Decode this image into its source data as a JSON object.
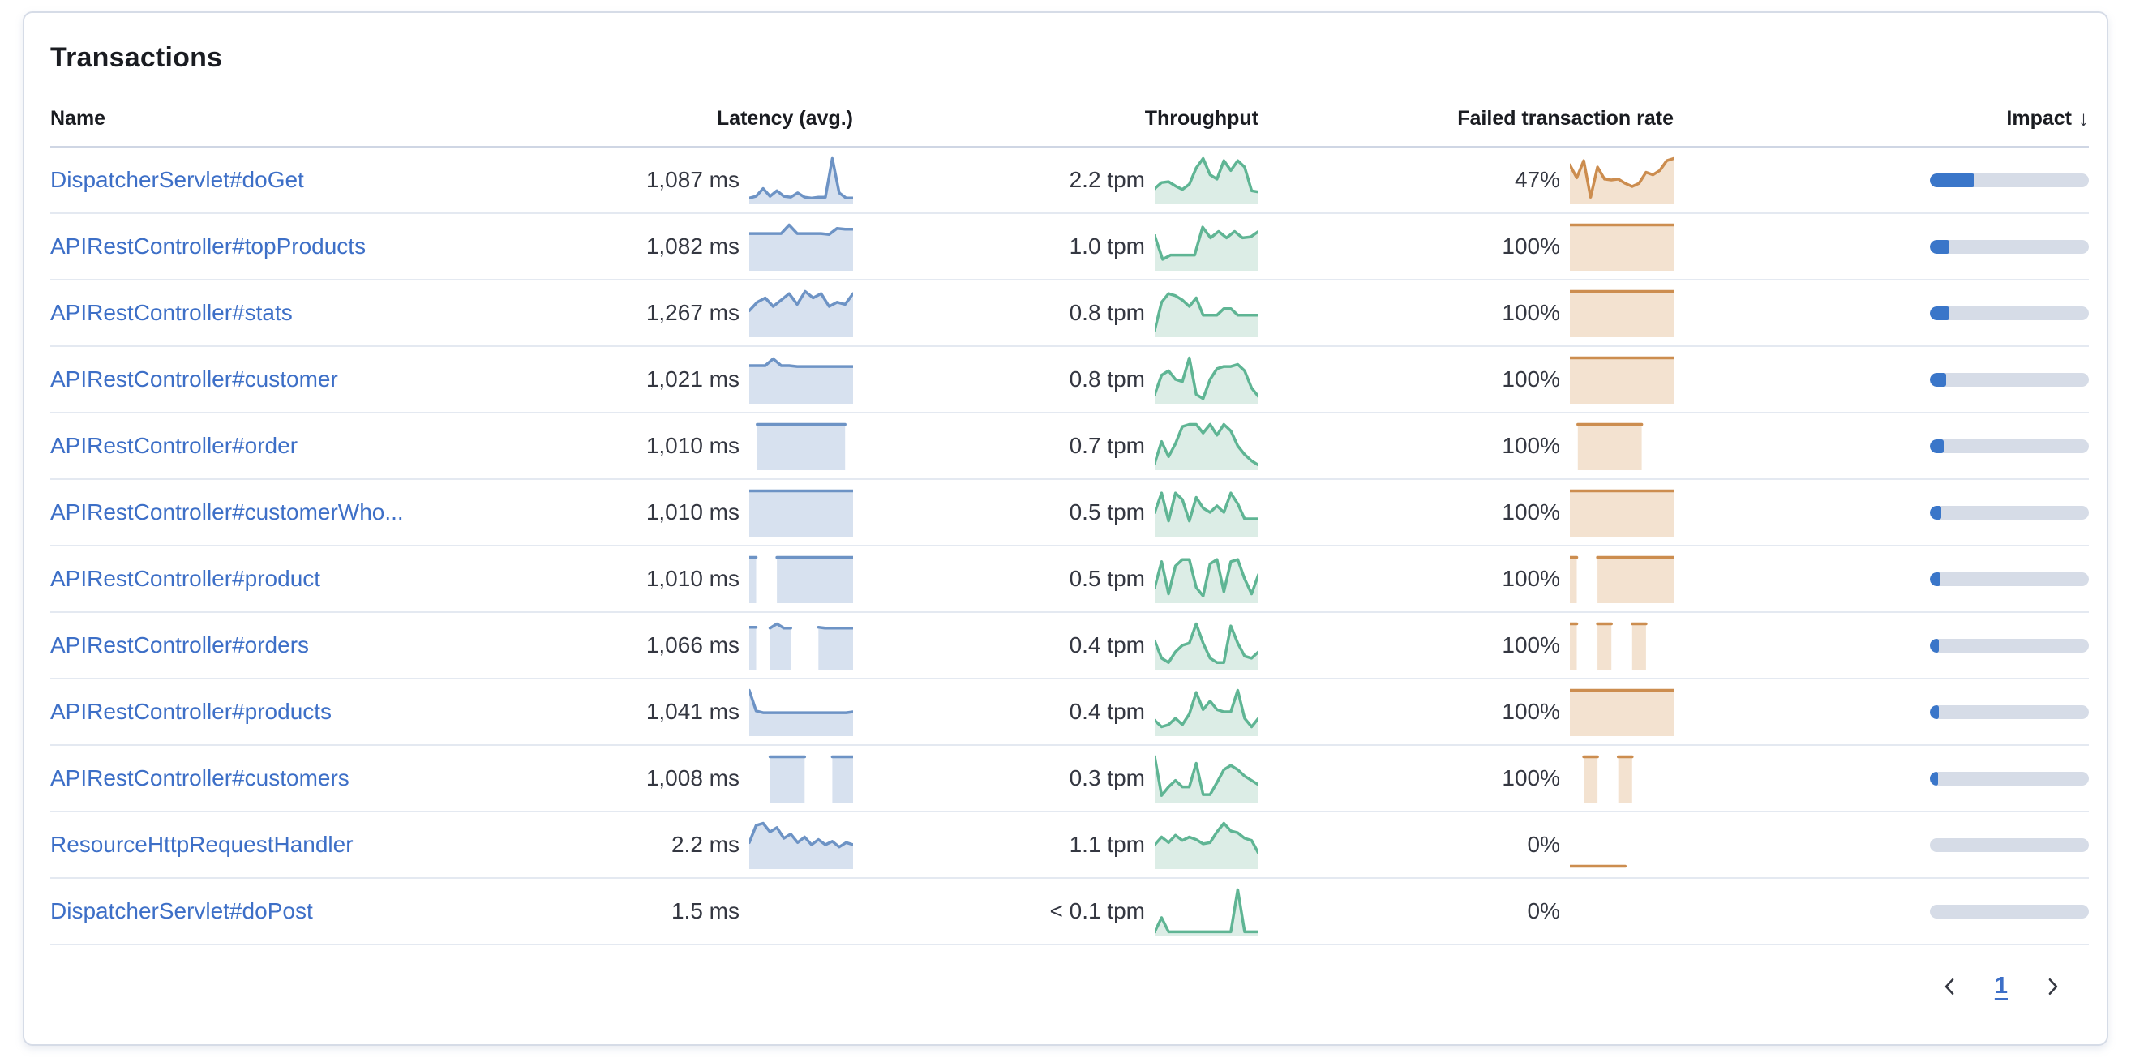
{
  "card": {
    "title": "Transactions"
  },
  "table": {
    "columns": {
      "name": "Name",
      "latency": "Latency (avg.)",
      "throughput": "Throughput",
      "failed": "Failed transaction rate",
      "impact": "Impact"
    },
    "sort_icon": "↓",
    "rows": [
      {
        "name": "DispatcherServlet#doGet",
        "latency": "1,087 ms",
        "throughput": "2.2 tpm",
        "failed": "47%",
        "impact_pct": 28,
        "latency_spark": [
          0.08,
          0.12,
          0.3,
          0.12,
          0.25,
          0.12,
          0.1,
          0.2,
          0.1,
          0.08,
          0.1,
          0.1,
          1.0,
          0.2,
          0.08,
          0.08
        ],
        "throughput_spark": [
          0.3,
          0.44,
          0.46,
          0.36,
          0.28,
          0.4,
          0.78,
          1.0,
          0.62,
          0.52,
          0.95,
          0.72,
          0.95,
          0.8,
          0.25,
          0.22
        ],
        "failed_spark": [
          0.85,
          0.55,
          0.95,
          0.1,
          0.8,
          0.52,
          0.5,
          0.52,
          0.42,
          0.35,
          0.42,
          0.68,
          0.62,
          0.72,
          0.95,
          1.0
        ]
      },
      {
        "name": "APIRestController#topProducts",
        "latency": "1,082 ms",
        "throughput": "1.0 tpm",
        "failed": "100%",
        "impact_pct": 12,
        "latency_spark": [
          0.8,
          0.8,
          0.8,
          0.8,
          0.8,
          1.0,
          0.8,
          0.8,
          0.8,
          0.8,
          0.78,
          0.92,
          0.9,
          0.9
        ],
        "throughput_spark": [
          0.75,
          0.2,
          0.3,
          0.3,
          0.3,
          0.3,
          0.95,
          0.7,
          0.85,
          0.7,
          0.85,
          0.7,
          0.72,
          0.85
        ],
        "failed_spark": [
          1,
          1,
          1,
          1,
          1,
          1,
          1,
          1,
          1,
          1,
          1,
          1,
          1,
          1
        ]
      },
      {
        "name": "APIRestController#stats",
        "latency": "1,267 ms",
        "throughput": "0.8 tpm",
        "failed": "100%",
        "impact_pct": 12,
        "latency_spark": [
          0.55,
          0.75,
          0.85,
          0.65,
          0.8,
          0.95,
          0.7,
          1.0,
          0.85,
          0.95,
          0.65,
          0.75,
          0.7,
          0.95
        ],
        "throughput_spark": [
          0.1,
          0.75,
          0.95,
          0.9,
          0.8,
          0.65,
          0.85,
          0.45,
          0.45,
          0.45,
          0.6,
          0.6,
          0.45,
          0.45,
          0.45,
          0.45
        ],
        "failed_spark": [
          1,
          1,
          1,
          1,
          1,
          1,
          1,
          1,
          1,
          1,
          1,
          1,
          1,
          1
        ]
      },
      {
        "name": "APIRestController#customer",
        "latency": "1,021 ms",
        "throughput": "0.8 tpm",
        "failed": "100%",
        "impact_pct": 10,
        "latency_spark": [
          0.82,
          0.82,
          0.82,
          0.98,
          0.82,
          0.82,
          0.8,
          0.8,
          0.8,
          0.8,
          0.8,
          0.8,
          0.8,
          0.8
        ],
        "throughput_spark": [
          0.15,
          0.6,
          0.7,
          0.5,
          0.45,
          1.0,
          0.15,
          0.05,
          0.5,
          0.75,
          0.8,
          0.8,
          0.85,
          0.7,
          0.3,
          0.1
        ],
        "failed_spark": [
          1,
          1,
          1,
          1,
          1,
          1,
          1,
          1,
          1,
          1,
          1,
          1,
          1,
          1
        ]
      },
      {
        "name": "APIRestController#order",
        "latency": "1,010 ms",
        "throughput": "0.7 tpm",
        "failed": "100%",
        "impact_pct": 8.5,
        "latency_spark": [
          null,
          1,
          1,
          1,
          1,
          1,
          1,
          1,
          1,
          1,
          1,
          1,
          1,
          null
        ],
        "throughput_spark": [
          0.1,
          0.6,
          0.25,
          0.55,
          0.95,
          1.0,
          1.0,
          0.8,
          1.0,
          0.75,
          1.0,
          0.85,
          0.5,
          0.3,
          0.15,
          0.05
        ],
        "failed_spark": [
          null,
          1,
          1,
          1,
          1,
          1,
          1,
          1,
          1,
          1,
          null,
          null,
          null,
          null
        ]
      },
      {
        "name": "APIRestController#customerWho...",
        "latency": "1,010 ms",
        "throughput": "0.5 tpm",
        "failed": "100%",
        "impact_pct": 7,
        "latency_spark": [
          1,
          1,
          1,
          1,
          1,
          1,
          1,
          1,
          1,
          1,
          1,
          1,
          1,
          1
        ],
        "throughput_spark": [
          0.5,
          0.95,
          0.3,
          0.95,
          0.8,
          0.3,
          0.85,
          0.6,
          0.5,
          0.65,
          0.5,
          0.95,
          0.7,
          0.35,
          0.35,
          0.35
        ],
        "failed_spark": [
          1,
          1,
          1,
          1,
          1,
          1,
          1,
          1,
          1,
          1,
          1,
          1,
          1,
          1
        ]
      },
      {
        "name": "APIRestController#product",
        "latency": "1,010 ms",
        "throughput": "0.5 tpm",
        "failed": "100%",
        "impact_pct": 6.5,
        "latency_spark": [
          1,
          1,
          null,
          null,
          1,
          1,
          1,
          1,
          1,
          1,
          1,
          1,
          1,
          1,
          1,
          1
        ],
        "throughput_spark": [
          0.3,
          0.9,
          0.15,
          0.8,
          0.95,
          0.95,
          0.3,
          0.1,
          0.85,
          0.95,
          0.2,
          0.9,
          0.95,
          0.5,
          0.15,
          0.6
        ],
        "failed_spark": [
          1,
          1,
          null,
          null,
          1,
          1,
          1,
          1,
          1,
          1,
          1,
          1,
          1,
          1,
          1,
          1
        ]
      },
      {
        "name": "APIRestController#orders",
        "latency": "1,066 ms",
        "throughput": "0.4 tpm",
        "failed": "100%",
        "impact_pct": 5.5,
        "latency_spark": [
          0.92,
          0.92,
          null,
          0.9,
          1.0,
          0.9,
          0.9,
          null,
          null,
          null,
          0.92,
          0.9,
          0.9,
          0.9,
          0.9,
          0.9
        ],
        "throughput_spark": [
          0.6,
          0.2,
          0.1,
          0.35,
          0.5,
          0.55,
          1.0,
          0.55,
          0.2,
          0.1,
          0.1,
          0.95,
          0.55,
          0.25,
          0.2,
          0.35
        ],
        "failed_spark": [
          1,
          1,
          null,
          null,
          1,
          1,
          1,
          null,
          null,
          1,
          1,
          1,
          null,
          null,
          null,
          null
        ]
      },
      {
        "name": "APIRestController#products",
        "latency": "1,041 ms",
        "throughput": "0.4 tpm",
        "failed": "100%",
        "impact_pct": 5.5,
        "latency_spark": [
          1.0,
          0.52,
          0.48,
          0.48,
          0.48,
          0.48,
          0.48,
          0.48,
          0.48,
          0.48,
          0.48,
          0.48,
          0.48,
          0.48,
          0.48,
          0.5
        ],
        "throughput_spark": [
          0.3,
          0.15,
          0.2,
          0.35,
          0.2,
          0.45,
          0.95,
          0.55,
          0.75,
          0.55,
          0.5,
          0.5,
          1.0,
          0.35,
          0.15,
          0.35
        ],
        "failed_spark": [
          1,
          1,
          1,
          1,
          1,
          1,
          1,
          1,
          1,
          1,
          1,
          1,
          1,
          1,
          1,
          1
        ]
      },
      {
        "name": "APIRestController#customers",
        "latency": "1,008 ms",
        "throughput": "0.3 tpm",
        "failed": "100%",
        "impact_pct": 5,
        "latency_spark": [
          null,
          null,
          null,
          1,
          1,
          1,
          1,
          1,
          1,
          null,
          null,
          null,
          1,
          1,
          1,
          1
        ],
        "throughput_spark": [
          1.0,
          0.1,
          0.3,
          0.45,
          0.3,
          0.3,
          0.85,
          0.12,
          0.12,
          0.4,
          0.7,
          0.8,
          0.7,
          0.55,
          0.45,
          0.35
        ],
        "failed_spark": [
          null,
          null,
          1,
          1,
          1,
          null,
          null,
          1,
          1,
          1,
          null,
          null,
          null,
          null,
          null,
          null
        ]
      },
      {
        "name": "ResourceHttpRequestHandler",
        "latency": "2.2 ms",
        "throughput": "1.1 tpm",
        "failed": "0%",
        "impact_pct": 0,
        "latency_spark": [
          0.55,
          0.95,
          1.0,
          0.8,
          0.9,
          0.65,
          0.75,
          0.55,
          0.68,
          0.5,
          0.62,
          0.5,
          0.58,
          0.45,
          0.55,
          0.5
        ],
        "throughput_spark": [
          0.5,
          0.68,
          0.55,
          0.72,
          0.6,
          0.68,
          0.62,
          0.52,
          0.55,
          0.8,
          1.0,
          0.82,
          0.78,
          0.65,
          0.6,
          0.3
        ],
        "failed_spark": [
          0,
          0,
          0,
          0,
          0,
          0,
          0,
          0,
          0,
          null,
          null,
          null,
          null,
          null,
          null,
          null
        ]
      },
      {
        "name": "DispatcherServlet#doPost",
        "latency": "1.5 ms",
        "throughput": "< 0.1 tpm",
        "failed": "0%",
        "impact_pct": 0,
        "latency_spark": null,
        "throughput_spark": [
          0.02,
          0.35,
          0.02,
          0.02,
          0.02,
          0.02,
          0.02,
          0.02,
          0.02,
          0.02,
          0.02,
          0.02,
          1.0,
          0.02,
          0.02,
          0.02
        ],
        "failed_spark": null
      }
    ]
  },
  "pagination": {
    "page": "1"
  },
  "colors": {
    "latency_line": "#6D93C5",
    "latency_fill": "#D7E1EF",
    "throughput_line": "#5FB594",
    "throughput_fill": "#DCEDE6",
    "failed_line": "#CC8D4F",
    "failed_fill": "#F3E2D0",
    "impact_fill": "#3A76C9",
    "impact_track": "#D6DCE7",
    "link": "#3D6FC7"
  }
}
